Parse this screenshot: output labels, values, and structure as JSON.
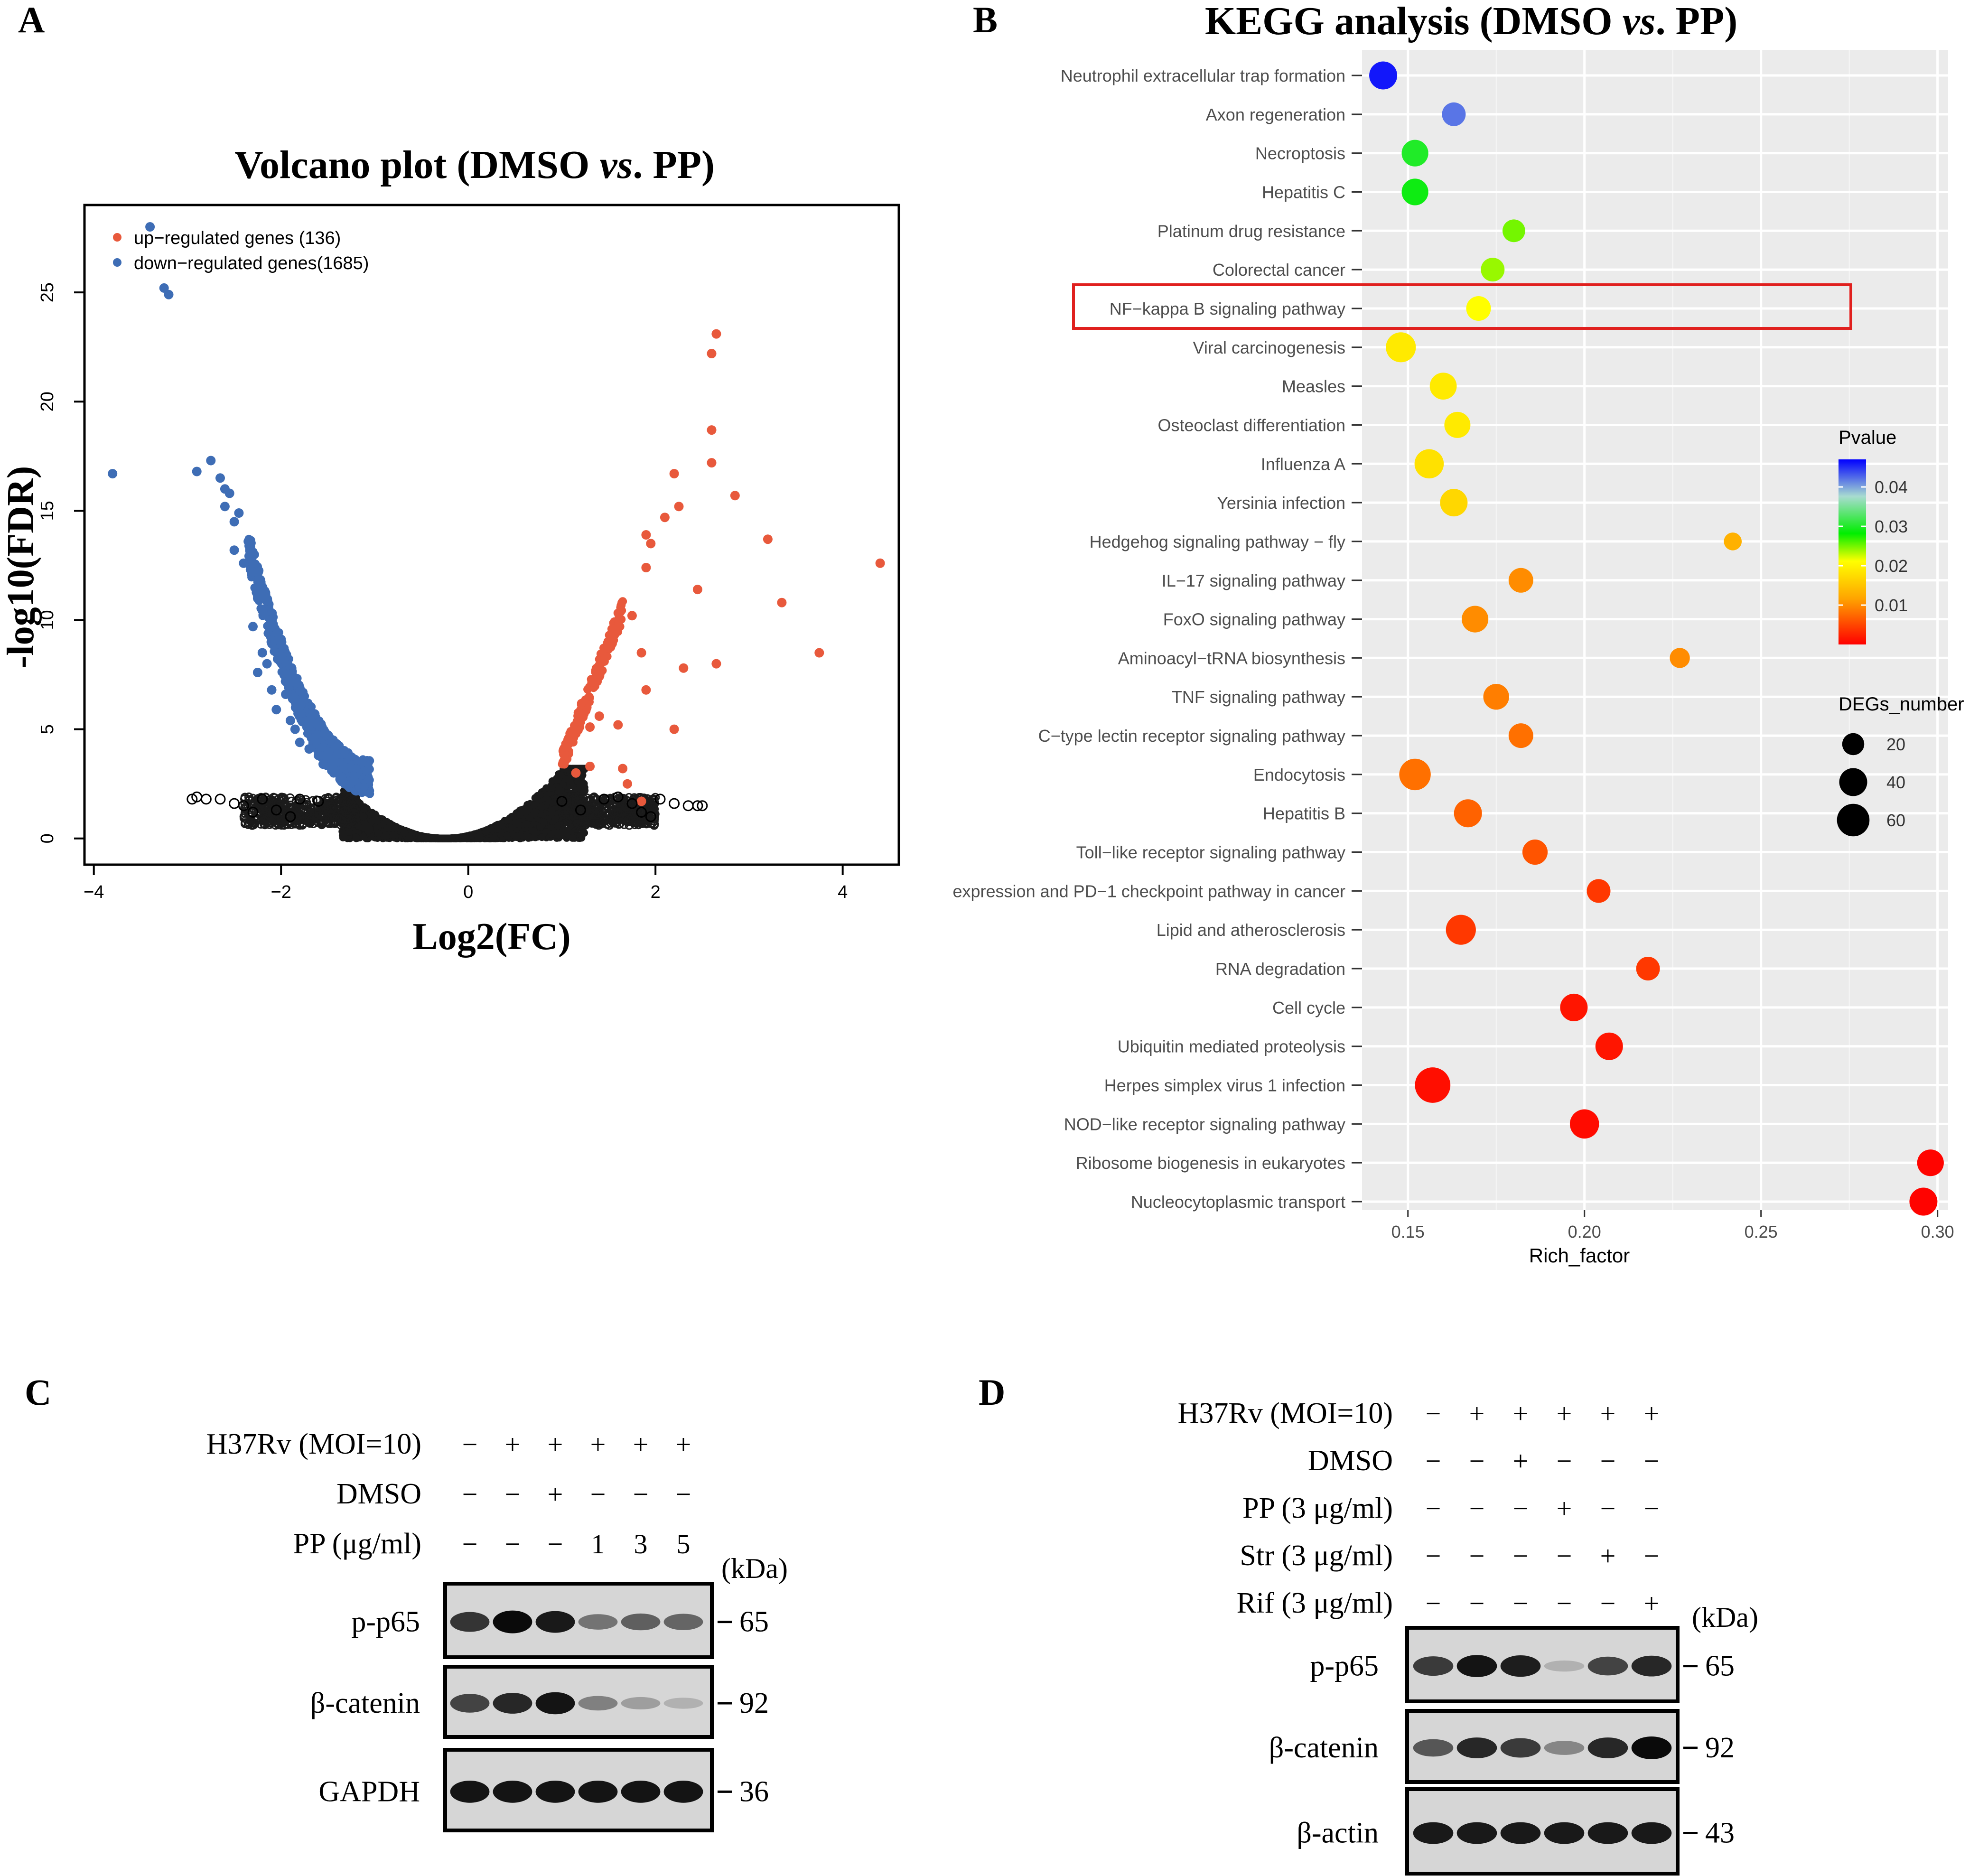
{
  "panels": {
    "a": "A",
    "b": "B",
    "c": "C",
    "d": "D"
  },
  "chart_data": [
    {
      "type": "scatter",
      "panel": "A",
      "title_prefix": "Volcano plot (DMSO ",
      "title_italic": "vs",
      "title_suffix": ". PP)",
      "xlabel": "Log2(FC)",
      "ylabel": "-log10(FDR)",
      "xlim": [
        -4.1,
        4.6
      ],
      "ylim": [
        -1.2,
        29
      ],
      "xticks": [
        -4,
        -2,
        0,
        2,
        4
      ],
      "yticks": [
        0,
        5,
        10,
        15,
        20,
        25
      ],
      "legend": [
        {
          "label": "up−regulated genes (136)",
          "color": "#e8593c"
        },
        {
          "label": "down−regulated genes(1685)",
          "color": "#3e6db5"
        }
      ],
      "series": [
        {
          "name": "down-regulated",
          "color": "#3e6db5",
          "points": [
            [
              -3.4,
              28.0
            ],
            [
              -3.25,
              25.2
            ],
            [
              -3.2,
              24.9
            ],
            [
              -3.8,
              16.7
            ],
            [
              -2.9,
              16.8
            ],
            [
              -2.75,
              17.3
            ],
            [
              -2.65,
              16.5
            ],
            [
              -2.6,
              16.0
            ],
            [
              -2.55,
              15.8
            ],
            [
              -2.6,
              15.2
            ],
            [
              -2.5,
              14.5
            ],
            [
              -2.45,
              14.9
            ],
            [
              -2.5,
              13.2
            ],
            [
              -2.35,
              13.6
            ],
            [
              -2.4,
              12.6
            ],
            [
              -2.3,
              12.2
            ],
            [
              -2.25,
              11.0
            ],
            [
              -2.3,
              9.7
            ],
            [
              -2.2,
              8.5
            ],
            [
              -2.15,
              8.0
            ],
            [
              -2.25,
              7.6
            ],
            [
              -2.1,
              6.8
            ],
            [
              -1.95,
              6.6
            ],
            [
              -2.05,
              5.9
            ],
            [
              -1.9,
              5.4
            ],
            [
              -1.85,
              5.0
            ],
            [
              -1.8,
              4.4
            ],
            [
              -1.7,
              4.1
            ],
            [
              -1.6,
              3.8
            ],
            [
              -1.55,
              3.4
            ],
            [
              -1.45,
              3.1
            ],
            [
              -1.35,
              2.8
            ]
          ]
        },
        {
          "name": "up-regulated",
          "color": "#e8593c",
          "points": [
            [
              2.65,
              23.1
            ],
            [
              2.6,
              22.2
            ],
            [
              2.6,
              18.7
            ],
            [
              2.6,
              17.2
            ],
            [
              2.2,
              16.7
            ],
            [
              2.85,
              15.7
            ],
            [
              2.25,
              15.2
            ],
            [
              2.1,
              14.7
            ],
            [
              3.2,
              13.7
            ],
            [
              1.9,
              13.9
            ],
            [
              1.95,
              13.5
            ],
            [
              4.4,
              12.6
            ],
            [
              1.9,
              12.4
            ],
            [
              2.45,
              11.4
            ],
            [
              3.35,
              10.8
            ],
            [
              1.75,
              10.2
            ],
            [
              3.75,
              8.5
            ],
            [
              2.65,
              8.0
            ],
            [
              2.3,
              7.8
            ],
            [
              1.85,
              8.5
            ],
            [
              1.9,
              6.8
            ],
            [
              2.2,
              5.0
            ],
            [
              1.6,
              5.2
            ],
            [
              1.65,
              3.2
            ],
            [
              1.3,
              3.3
            ],
            [
              1.15,
              3.0
            ],
            [
              1.7,
              2.5
            ],
            [
              1.85,
              1.7
            ],
            [
              1.3,
              5.1
            ],
            [
              1.4,
              5.6
            ]
          ]
        },
        {
          "name": "not significant",
          "color": "#000000",
          "points": [
            [
              -2.9,
              1.9
            ],
            [
              -2.95,
              1.8
            ],
            [
              -2.8,
              1.8
            ],
            [
              -2.65,
              1.8
            ],
            [
              -2.5,
              1.6
            ],
            [
              -2.4,
              1.5
            ],
            [
              -2.3,
              1.2
            ],
            [
              -2.2,
              1.8
            ],
            [
              -2.05,
              1.3
            ],
            [
              -1.9,
              1.0
            ],
            [
              -1.8,
              1.8
            ],
            [
              -1.6,
              1.7
            ],
            [
              1.45,
              1.8
            ],
            [
              1.6,
              1.9
            ],
            [
              1.75,
              1.6
            ],
            [
              1.85,
              1.2
            ],
            [
              1.95,
              1.0
            ],
            [
              2.05,
              1.8
            ],
            [
              2.2,
              1.6
            ],
            [
              2.35,
              1.5
            ],
            [
              2.45,
              1.5
            ],
            [
              2.5,
              1.5
            ],
            [
              1.2,
              1.3
            ],
            [
              1.0,
              1.7
            ]
          ]
        }
      ]
    },
    {
      "type": "scatter",
      "panel": "B",
      "title_prefix": "KEGG analysis (DMSO ",
      "title_italic": "vs",
      "title_suffix": ". PP)",
      "xlabel": "Rich_factor",
      "xlim": [
        0.137,
        0.303
      ],
      "xticks": [
        0.15,
        0.2,
        0.25,
        0.3
      ],
      "xtick_labels": [
        "0.15",
        "0.20",
        "0.25",
        "0.30"
      ],
      "highlighted": "NF−kappa B signaling pathway",
      "color_legend": {
        "title": "Pvalue",
        "ticks": [
          0.04,
          0.03,
          0.02,
          0.01
        ],
        "tick_labels": [
          "0.04",
          "0.03",
          "0.02",
          "0.01"
        ],
        "range": [
          0.0,
          0.047
        ]
      },
      "size_legend": {
        "title": "DEGs_number",
        "values": [
          20,
          40,
          60
        ]
      },
      "pathways": [
        {
          "name": "Neutrophil extracellular trap formation",
          "rich_factor": 0.143,
          "pvalue": 0.046,
          "count": 40
        },
        {
          "name": "Axon regeneration",
          "rich_factor": 0.163,
          "pvalue": 0.042,
          "count": 25
        },
        {
          "name": "Necroptosis",
          "rich_factor": 0.152,
          "pvalue": 0.03,
          "count": 35
        },
        {
          "name": "Hepatitis C",
          "rich_factor": 0.152,
          "pvalue": 0.029,
          "count": 35
        },
        {
          "name": "Platinum drug resistance",
          "rich_factor": 0.18,
          "pvalue": 0.025,
          "count": 22
        },
        {
          "name": "Colorectal cancer",
          "rich_factor": 0.174,
          "pvalue": 0.024,
          "count": 25
        },
        {
          "name": "NF−kappa B signaling pathway",
          "rich_factor": 0.17,
          "pvalue": 0.021,
          "count": 28
        },
        {
          "name": "Viral carcinogenesis",
          "rich_factor": 0.148,
          "pvalue": 0.019,
          "count": 48
        },
        {
          "name": "Measles",
          "rich_factor": 0.16,
          "pvalue": 0.019,
          "count": 36
        },
        {
          "name": "Osteoclast differentiation",
          "rich_factor": 0.164,
          "pvalue": 0.019,
          "count": 33
        },
        {
          "name": "Influenza A",
          "rich_factor": 0.156,
          "pvalue": 0.018,
          "count": 45
        },
        {
          "name": "Yersinia infection",
          "rich_factor": 0.163,
          "pvalue": 0.017,
          "count": 38
        },
        {
          "name": "Hedgehog signaling pathway − fly",
          "rich_factor": 0.242,
          "pvalue": 0.013,
          "count": 10
        },
        {
          "name": "IL−17 signaling pathway",
          "rich_factor": 0.182,
          "pvalue": 0.01,
          "count": 28
        },
        {
          "name": "FoxO signaling pathway",
          "rich_factor": 0.169,
          "pvalue": 0.01,
          "count": 35
        },
        {
          "name": "Aminoacyl−tRNA biosynthesis",
          "rich_factor": 0.227,
          "pvalue": 0.01,
          "count": 15
        },
        {
          "name": "TNF signaling pathway",
          "rich_factor": 0.175,
          "pvalue": 0.009,
          "count": 32
        },
        {
          "name": "C−type lectin receptor signaling pathway",
          "rich_factor": 0.182,
          "pvalue": 0.008,
          "count": 28
        },
        {
          "name": "Endocytosis",
          "rich_factor": 0.152,
          "pvalue": 0.008,
          "count": 55
        },
        {
          "name": "Hepatitis B",
          "rich_factor": 0.167,
          "pvalue": 0.007,
          "count": 40
        },
        {
          "name": "Toll−like receptor signaling pathway",
          "rich_factor": 0.186,
          "pvalue": 0.006,
          "count": 30
        },
        {
          "name": "expression and PD−1 checkpoint pathway in cancer",
          "rich_factor": 0.204,
          "pvalue": 0.004,
          "count": 25
        },
        {
          "name": "Lipid and atherosclerosis",
          "rich_factor": 0.165,
          "pvalue": 0.004,
          "count": 48
        },
        {
          "name": "RNA degradation",
          "rich_factor": 0.218,
          "pvalue": 0.004,
          "count": 25
        },
        {
          "name": "Cell cycle",
          "rich_factor": 0.197,
          "pvalue": 0.0015,
          "count": 38
        },
        {
          "name": "Ubiquitin mediated proteolysis",
          "rich_factor": 0.207,
          "pvalue": 0.0015,
          "count": 38
        },
        {
          "name": "Herpes simplex virus 1 infection",
          "rich_factor": 0.157,
          "pvalue": 0.001,
          "count": 75
        },
        {
          "name": "NOD−like receptor signaling pathway",
          "rich_factor": 0.2,
          "pvalue": 0.0008,
          "count": 45
        },
        {
          "name": "Ribosome biogenesis in eukaryotes",
          "rich_factor": 0.298,
          "pvalue": 0.0003,
          "count": 35
        },
        {
          "name": "Nucleocytoplasmic transport",
          "rich_factor": 0.296,
          "pvalue": 0.0002,
          "count": 40
        }
      ]
    }
  ],
  "blot_c": {
    "rows": [
      {
        "label": "H37Rv (MOI=10)",
        "signs": [
          "−",
          "+",
          "+",
          "+",
          "+",
          "+"
        ]
      },
      {
        "label": "DMSO",
        "signs": [
          "−",
          "−",
          "+",
          "−",
          "−",
          "−"
        ]
      },
      {
        "label": "PP (μg/ml)",
        "signs": [
          "−",
          "−",
          "−",
          "1",
          "3",
          "5"
        ]
      }
    ],
    "kda_label": "(kDa)",
    "bands": [
      {
        "label": "p-p65",
        "kda": "65",
        "intensity": [
          0.78,
          1.0,
          0.92,
          0.45,
          0.55,
          0.52
        ]
      },
      {
        "label": "β-catenin",
        "kda": "92",
        "intensity": [
          0.7,
          0.85,
          0.95,
          0.38,
          0.22,
          0.12
        ]
      },
      {
        "label": "GAPDH",
        "kda": "36",
        "intensity": [
          0.95,
          0.95,
          0.95,
          0.95,
          0.95,
          0.95
        ]
      }
    ]
  },
  "blot_d": {
    "rows": [
      {
        "label": "H37Rv (MOI=10)",
        "signs": [
          "−",
          "+",
          "+",
          "+",
          "+",
          "+"
        ]
      },
      {
        "label": "DMSO",
        "signs": [
          "−",
          "−",
          "+",
          "−",
          "−",
          "−"
        ]
      },
      {
        "label": "PP (3 μg/ml)",
        "signs": [
          "−",
          "−",
          "−",
          "+",
          "−",
          "−"
        ]
      },
      {
        "label": "Str (3 μg/ml)",
        "signs": [
          "−",
          "−",
          "−",
          "−",
          "+",
          "−"
        ]
      },
      {
        "label": "Rif (3 μg/ml)",
        "signs": [
          "−",
          "−",
          "−",
          "−",
          "−",
          "+"
        ]
      }
    ],
    "kda_label": "(kDa)",
    "bands": [
      {
        "label": "p-p65",
        "kda": "65",
        "intensity": [
          0.75,
          0.95,
          0.9,
          0.12,
          0.7,
          0.85
        ]
      },
      {
        "label": "β-catenin",
        "kda": "92",
        "intensity": [
          0.6,
          0.85,
          0.75,
          0.35,
          0.85,
          1.0
        ]
      },
      {
        "label": "β-actin",
        "kda": "43",
        "intensity": [
          0.92,
          0.92,
          0.92,
          0.92,
          0.92,
          0.92
        ]
      }
    ]
  }
}
